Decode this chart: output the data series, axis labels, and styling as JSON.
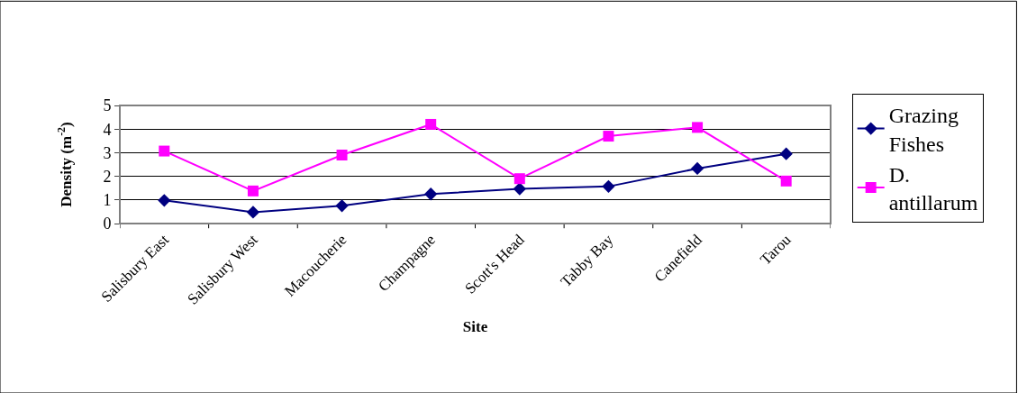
{
  "chart_data": {
    "type": "line",
    "xlabel": "Site",
    "ylabel": "Density (m$^{-2}$)",
    "categories": [
      "Salisbury East",
      "Salisbury West",
      "Macoucherie",
      "Champagne",
      "Scott's Head",
      "Tabby Bay",
      "Canefield",
      "Tarou"
    ],
    "series": [
      {
        "name": "Grazing Fishes",
        "color": "#000080",
        "marker": "diamond",
        "values": [
          0.98,
          0.48,
          0.75,
          1.25,
          1.47,
          1.57,
          2.33,
          2.95
        ]
      },
      {
        "name": "D. antillarum",
        "color": "#ff00ff",
        "marker": "square",
        "values": [
          3.07,
          1.38,
          2.9,
          4.2,
          1.9,
          3.7,
          4.07,
          1.8
        ]
      }
    ],
    "ylim": [
      0,
      5
    ],
    "yticks": [
      0,
      1,
      2,
      3,
      4,
      5
    ],
    "grid": "y",
    "legend": "right",
    "line_style": "solid"
  }
}
